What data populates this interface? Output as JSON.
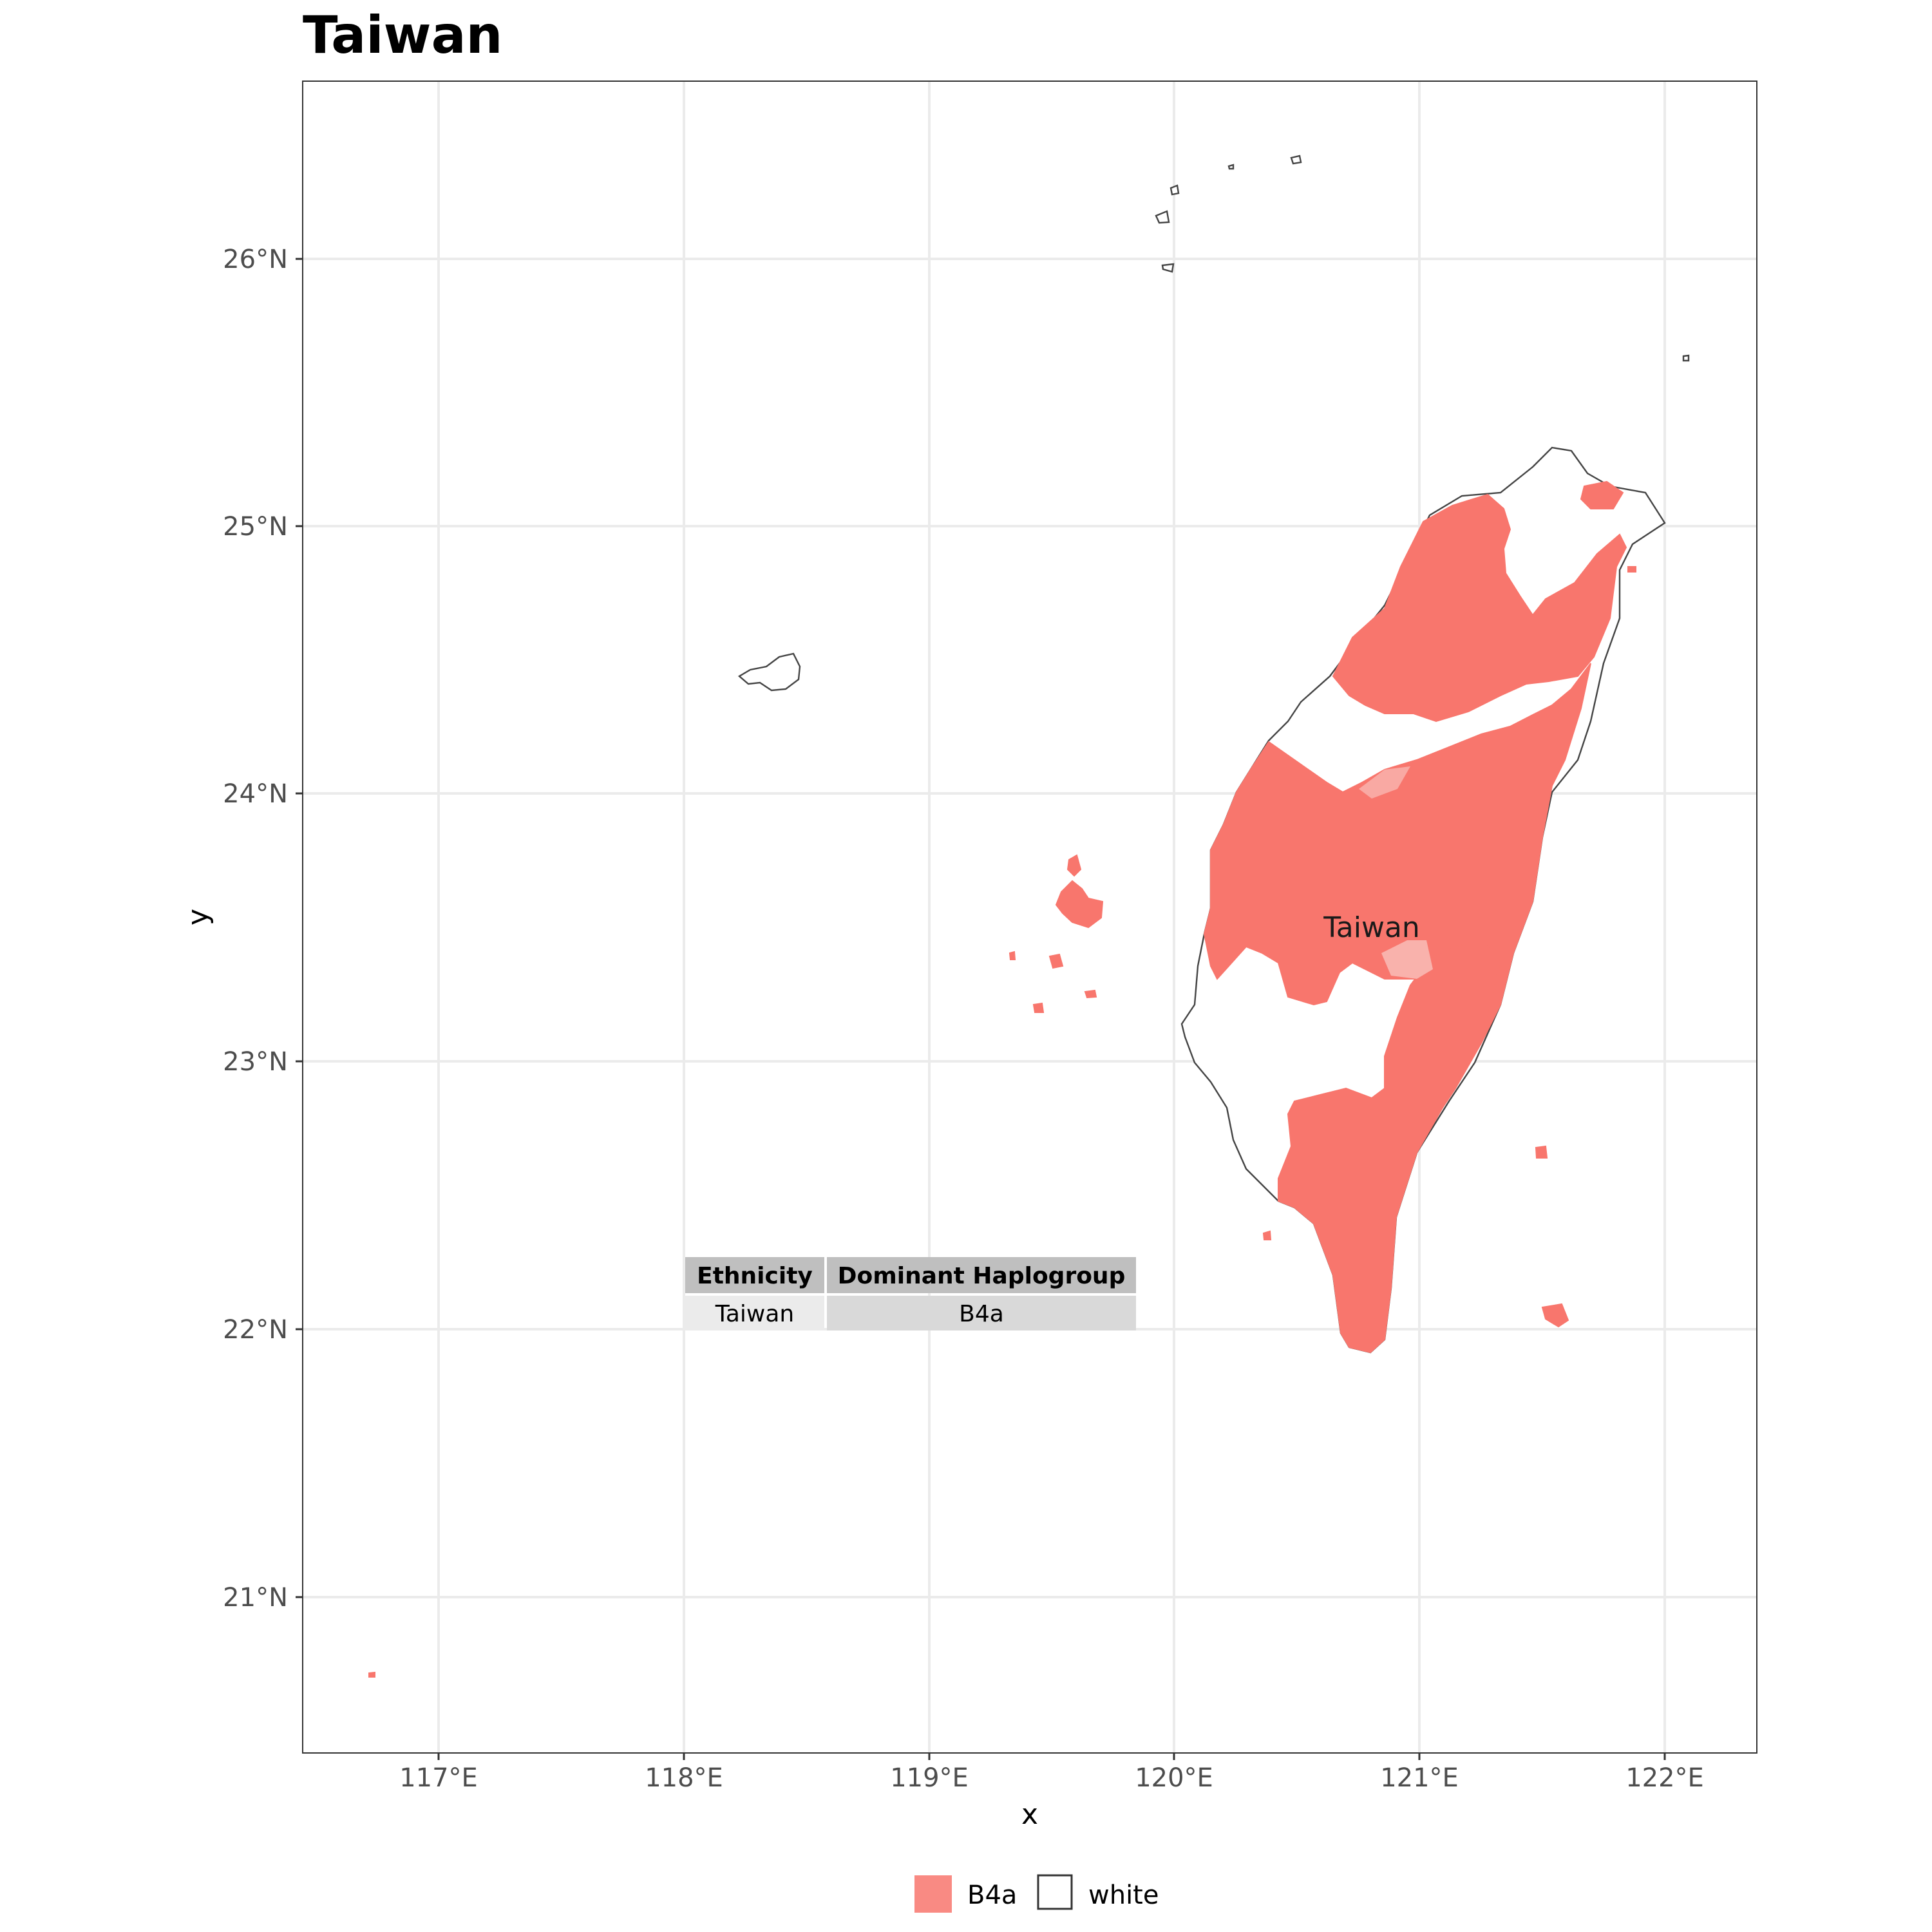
{
  "title": "Taiwan",
  "axes": {
    "xlabel": "x",
    "ylabel": "y",
    "x_ticks": [
      "117°E",
      "118°E",
      "119°E",
      "120°E",
      "121°E",
      "122°E"
    ],
    "y_ticks": [
      "21°N",
      "22°N",
      "23°N",
      "24°N",
      "25°N",
      "26°N"
    ]
  },
  "map_label": "Taiwan",
  "table": {
    "headers": [
      "Ethnicity",
      "Dominant Haplogroup"
    ],
    "row": [
      "Taiwan",
      "B4a"
    ]
  },
  "legend": {
    "items": [
      {
        "label": "B4a",
        "color": "#f8766d"
      },
      {
        "label": "white",
        "color": "#ffffff"
      }
    ]
  },
  "colors": {
    "fill": "#f8766d",
    "grid": "#ebebeb"
  }
}
